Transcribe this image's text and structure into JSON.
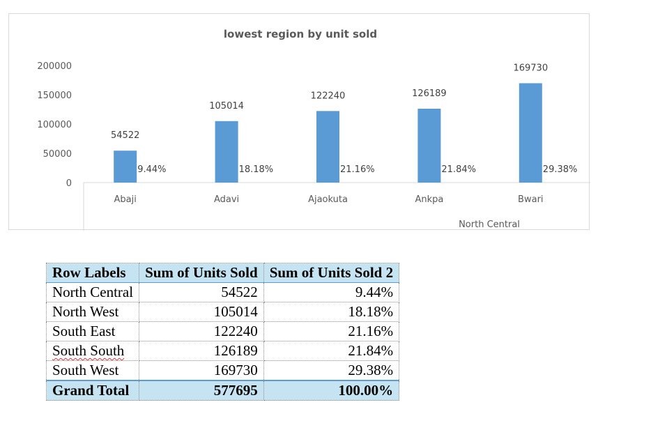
{
  "chart_data": {
    "type": "bar",
    "title": "lowest region by unit sold",
    "group_label": "North Central",
    "categories": [
      "Abaji",
      "Adavi",
      "Ajaokuta",
      "Ankpa",
      "Bwari"
    ],
    "values": [
      54522,
      105014,
      122240,
      126189,
      169730
    ],
    "value_labels": [
      "54522",
      "105014",
      "122240",
      "126189",
      "169730"
    ],
    "percent_labels": [
      "9.44%",
      "18.18%",
      "21.16%",
      "21.84%",
      "29.38%"
    ],
    "y_ticks": [
      "0",
      "50000",
      "100000",
      "150000",
      "200000"
    ],
    "ylim": [
      0,
      200000
    ],
    "bar_color": "#5b9bd5",
    "grid": false,
    "legend": "none"
  },
  "table": {
    "headers": [
      "Row Labels",
      "Sum of Units Sold",
      "Sum of Units Sold 2"
    ],
    "rows": [
      {
        "label": "North Central",
        "units": "54522",
        "percent": "9.44%"
      },
      {
        "label": "North West",
        "units": "105014",
        "percent": "18.18%"
      },
      {
        "label": "South East",
        "units": "122240",
        "percent": "21.16%"
      },
      {
        "label": "South South",
        "units": "126189",
        "percent": "21.84%"
      },
      {
        "label": "South West",
        "units": "169730",
        "percent": "29.38%"
      }
    ],
    "total": {
      "label": "Grand Total",
      "units": "577695",
      "percent": "100.00%"
    },
    "header_color": "#c5e3f1"
  }
}
